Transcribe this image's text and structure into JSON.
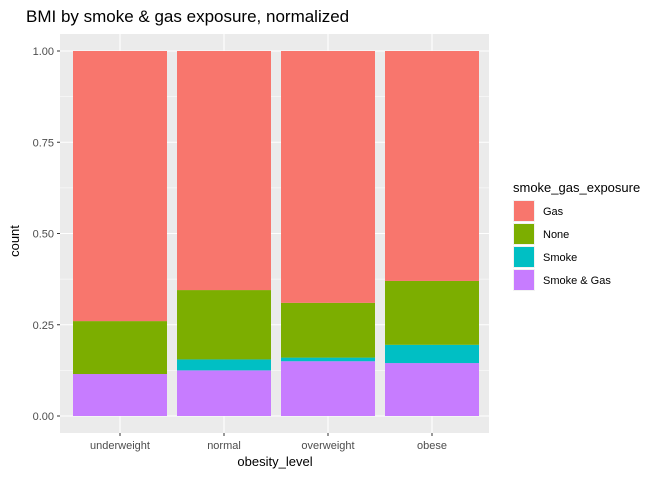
{
  "chart_data": {
    "type": "bar",
    "stacked": true,
    "normalized": true,
    "title": "BMI by smoke & gas exposure, normalized",
    "xlabel": "obesity_level",
    "ylabel": "count",
    "ylim": [
      0,
      1
    ],
    "yticks": [
      0.0,
      0.25,
      0.5,
      0.75,
      1.0
    ],
    "ytick_labels": [
      "0.00",
      "0.25",
      "0.50",
      "0.75",
      "1.00"
    ],
    "categories": [
      "underweight",
      "normal",
      "overweight",
      "obese"
    ],
    "stack_order_bottom_to_top": [
      "Smoke & Gas",
      "Smoke",
      "None",
      "Gas"
    ],
    "series": [
      {
        "name": "Gas",
        "color": "#F8766D",
        "values": [
          0.74,
          0.655,
          0.69,
          0.63
        ]
      },
      {
        "name": "None",
        "color": "#7CAE00",
        "values": [
          0.145,
          0.19,
          0.15,
          0.175
        ]
      },
      {
        "name": "Smoke",
        "color": "#00BFC4",
        "values": [
          0.0,
          0.03,
          0.01,
          0.05
        ]
      },
      {
        "name": "Smoke & Gas",
        "color": "#C77CFF",
        "values": [
          0.115,
          0.125,
          0.15,
          0.145
        ]
      }
    ],
    "legend": {
      "title": "smoke_gas_exposure",
      "position": "right",
      "entries": [
        "Gas",
        "None",
        "Smoke",
        "Smoke & Gas"
      ]
    },
    "panel_background": "#EBEBEB",
    "grid": true,
    "grid_color": "#FFFFFF"
  }
}
